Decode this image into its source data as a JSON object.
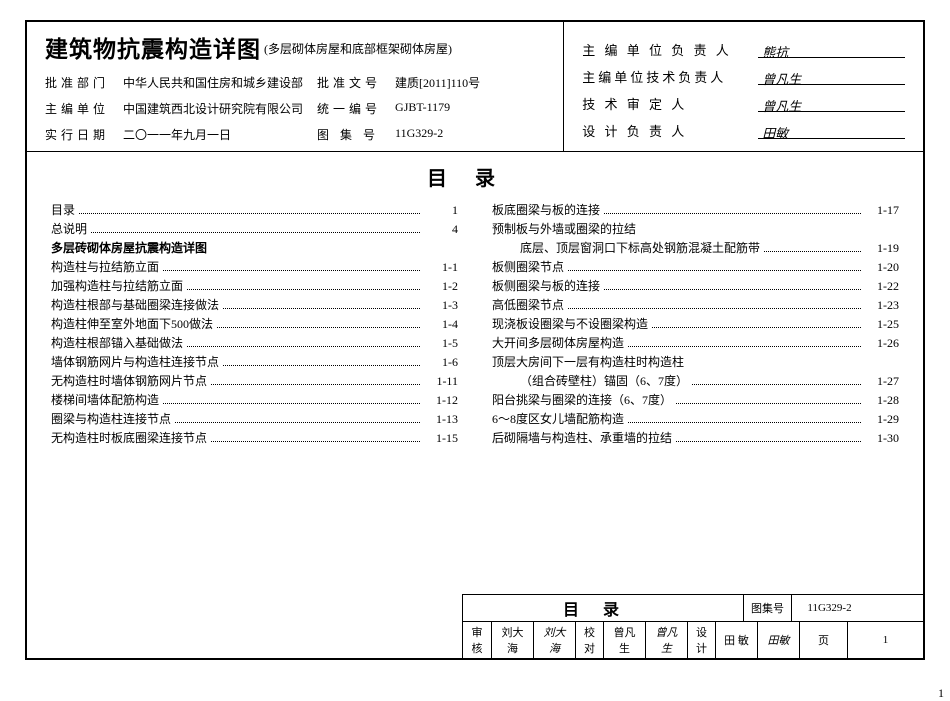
{
  "header": {
    "title": "建筑物抗震构造详图",
    "subtitle": "(多层砌体房屋和底部框架砌体房屋)",
    "meta": [
      {
        "label": "批准部门",
        "value": "中华人民共和国住房和城乡建设部"
      },
      {
        "label": "批准文号",
        "value": "建质[2011]110号"
      },
      {
        "label": "主编单位",
        "value": "中国建筑西北设计研究院有限公司"
      },
      {
        "label": "统一编号",
        "value": "GJBT-1179"
      },
      {
        "label": "实行日期",
        "value": "二〇一一年九月一日"
      },
      {
        "label": "图 集 号",
        "value": "11G329-2"
      }
    ],
    "signers": [
      {
        "label": "主 编 单 位 负 责 人",
        "sig": "熊抗"
      },
      {
        "label": "主编单位技术负责人",
        "sig": "曾凡生"
      },
      {
        "label": "技 术 审 定 人",
        "sig": "曾凡生"
      },
      {
        "label": "设 计 负 责 人",
        "sig": "田敏"
      }
    ]
  },
  "toc": {
    "heading": "目录",
    "left": [
      {
        "t": "目录",
        "p": "1"
      },
      {
        "t": "总说明",
        "p": "4"
      },
      {
        "t": "多层砖砌体房屋抗震构造详图",
        "bold": true
      },
      {
        "t": "构造柱与拉结筋立面",
        "p": "1-1"
      },
      {
        "t": "加强构造柱与拉结筋立面",
        "p": "1-2"
      },
      {
        "t": "构造柱根部与基础圈梁连接做法",
        "p": "1-3"
      },
      {
        "t": "构造柱伸至室外地面下500做法",
        "p": "1-4"
      },
      {
        "t": "构造柱根部锚入基础做法",
        "p": "1-5"
      },
      {
        "t": "墙体钢筋网片与构造柱连接节点",
        "p": "1-6"
      },
      {
        "t": "无构造柱时墙体钢筋网片节点",
        "p": "1-11"
      },
      {
        "t": "楼梯间墙体配筋构造",
        "p": "1-12"
      },
      {
        "t": "圈梁与构造柱连接节点",
        "p": "1-13"
      },
      {
        "t": "无构造柱时板底圈梁连接节点",
        "p": "1-15"
      }
    ],
    "right": [
      {
        "t": "板底圈梁与板的连接",
        "p": "1-17"
      },
      {
        "t": "预制板与外墙或圈梁的拉结"
      },
      {
        "t": "底层、顶层窗洞口下标高处钢筋混凝土配筋带",
        "p": "1-19",
        "indent": true
      },
      {
        "t": "板侧圈梁节点",
        "p": "1-20"
      },
      {
        "t": "板侧圈梁与板的连接",
        "p": "1-22"
      },
      {
        "t": "高低圈梁节点",
        "p": "1-23"
      },
      {
        "t": "现浇板设圈梁与不设圈梁构造",
        "p": "1-25"
      },
      {
        "t": "大开间多层砌体房屋构造",
        "p": "1-26"
      },
      {
        "t": "顶层大房间下一层有构造柱时构造柱"
      },
      {
        "t": "（组合砖壁柱）锚固（6、7度）",
        "p": "1-27",
        "indent": true
      },
      {
        "t": "阳台挑梁与圈梁的连接（6、7度）",
        "p": "1-28"
      },
      {
        "t": "6～8度区女儿墙配筋构造",
        "p": "1-29"
      },
      {
        "t": "后砌隔墙与构造柱、承重墙的拉结",
        "p": "1-30"
      }
    ]
  },
  "footer": {
    "title": "目录",
    "atlas_label": "图集号",
    "atlas_no": "11G329-2",
    "row2": [
      {
        "l": "审核",
        "v": "刘大海"
      },
      {
        "l": "",
        "v": "刘大海"
      },
      {
        "l": "校对",
        "v": "曾凡生"
      },
      {
        "l": "",
        "v": "曾凡生"
      },
      {
        "l": "设计",
        "v": "田 敏"
      },
      {
        "l": "",
        "v": "田敏"
      }
    ],
    "page_label": "页",
    "page_no": "1"
  },
  "outer_page": "1",
  "style": {
    "border_color": "#000000",
    "bg": "#ffffff",
    "title_fontsize": 23,
    "body_fontsize": 12
  }
}
